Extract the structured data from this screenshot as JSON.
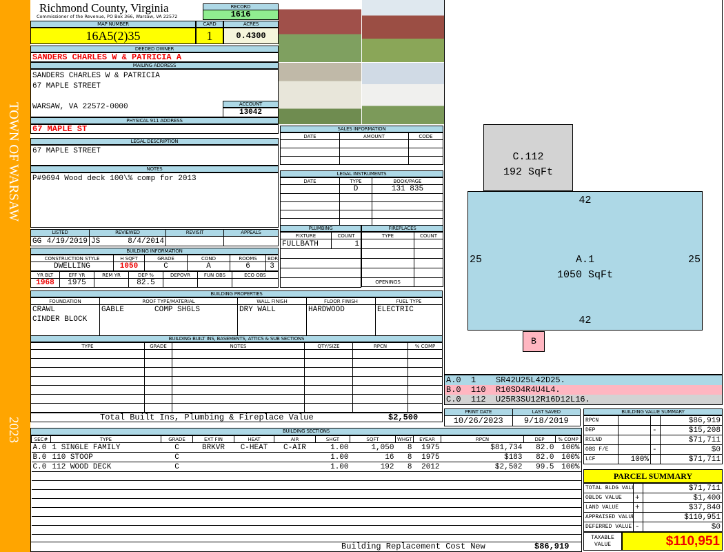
{
  "sidebar": {
    "town": "TOWN OF WARSAW",
    "year": "2023",
    "color": "#ffa500"
  },
  "header": {
    "title": "Richmond County, Virginia",
    "subtitle": "Commissioner of the Revenue, PO Box 366, Warsaw, VA 22572",
    "record_label": "RECORD",
    "record": "1616"
  },
  "parcel": {
    "map_label": "MAP NUMBER",
    "map": "16A5(2)35",
    "card_label": "CARD",
    "card": "1",
    "acres_label": "ACRES",
    "acres": "0.4300"
  },
  "owner": {
    "label": "DEEDED OWNER",
    "name": "SANDERS CHARLES W & PATRICIA A"
  },
  "mailing": {
    "label": "MAILING ADDRESS",
    "line1": "SANDERS CHARLES W & PATRICIA",
    "line2": "67 MAPLE STREET",
    "line3": "WARSAW, VA 22572-0000",
    "account_label": "ACCOUNT",
    "account": "13042"
  },
  "physical": {
    "label": "PHYSICAL 911 ADDRESS",
    "value": "67 MAPLE ST"
  },
  "legal": {
    "label": "LEGAL DESCRIPTION",
    "value": "67 MAPLE STREET"
  },
  "notes": {
    "label": "NOTES",
    "value": "P#9694 Wood deck 100\\% comp for 2013"
  },
  "review": {
    "listed_label": "LISTED",
    "reviewed_label": "REVIEWED",
    "revisit_label": "REVISIT",
    "appeals_label": "APPEALS",
    "listed_by": "GG",
    "listed_date": "4/19/2019",
    "reviewed_by": "JS",
    "reviewed_date": "8/4/2014"
  },
  "building_info": {
    "label": "BUILDING INFORMATION",
    "h1": [
      "CONSTRUCTION STYLE",
      "H SQFT",
      "GRADE",
      "COND",
      "ROOMS",
      "BDRMS"
    ],
    "v1": [
      "DWELLING",
      "1050",
      "C",
      "A",
      "6",
      "3"
    ],
    "h2": [
      "YR BLT",
      "EFF YR",
      "REM YR",
      "DEP %",
      "DEPOVR",
      "FUN OBS",
      "ECO OBS"
    ],
    "v2": [
      "1968",
      "1975",
      "",
      "82.5",
      "",
      "",
      ""
    ]
  },
  "sales": {
    "label": "SALES INFORMATION",
    "cols": [
      "DATE",
      "AMOUNT",
      "CODE"
    ]
  },
  "legal_instruments": {
    "label": "LEGAL INSTRUMENTS",
    "cols": [
      "DATE",
      "TYPE",
      "BOOK/PAGE"
    ],
    "rows": [
      [
        "",
        "D",
        "131 835"
      ]
    ]
  },
  "plumbing": {
    "label": "PLUMBING",
    "cols": [
      "FIXTURE",
      "COUNT"
    ],
    "rows": [
      [
        "FULLBATH",
        "1"
      ]
    ]
  },
  "fireplaces": {
    "label": "FIREPLACES",
    "cols": [
      "TYPE",
      "COUNT"
    ],
    "openings_label": "OPENINGS"
  },
  "properties": {
    "label": "BUILDING PROPERTIES",
    "cols": [
      "FOUNDATION",
      "ROOF TYPE/MATERIAL",
      "WALL FINISH",
      "FLOOR FINISH",
      "FUEL TYPE"
    ],
    "foundation1": "CRAWL",
    "foundation2": "CINDER BLOCK",
    "roof_type": "GABLE",
    "roof_material": "COMP SHGLS",
    "wall": "DRY WALL",
    "floor": "HARDWOOD",
    "fuel": "ELECTRIC"
  },
  "builtins": {
    "label": "BUILDING BUILT INS, BASEMENTS, ATTICS & SUB SECTIONS",
    "cols": [
      "TYPE",
      "GRADE",
      "NOTES",
      "QTY/SIZE",
      "RPCN",
      "% COMP"
    ],
    "total_label": "Total Built Ins, Plumbing & Fireplace Value",
    "total": "$2,500"
  },
  "sections": {
    "label": "BUILDING SECTIONS",
    "cols": [
      "SEC#",
      "TYPE",
      "GRADE",
      "EXT FIN",
      "HEAT",
      "AIR",
      "SHGT",
      "SQFT",
      "WHGT",
      "EYEAR",
      "RPCN",
      "DEP",
      "% COMP"
    ],
    "rows": [
      [
        "A.0",
        "1 SINGLE FAMILY",
        "C",
        "BRKVR",
        "C-HEAT",
        "C-AIR",
        "1.00",
        "1,050",
        "8",
        "1975",
        "$81,734",
        "82.0",
        "100%"
      ],
      [
        "B.0",
        "110 STOOP",
        "C",
        "",
        "",
        "",
        "1.00",
        "16",
        "8",
        "1975",
        "$183",
        "82.0",
        "100%"
      ],
      [
        "C.0",
        "112 WOOD DECK",
        "C",
        "",
        "",
        "",
        "1.00",
        "192",
        "8",
        "2012",
        "$2,502",
        "99.5",
        "100%"
      ]
    ],
    "rcn_label": "Building Replacement Cost New",
    "rcn": "$86,919"
  },
  "sketch": {
    "areas": [
      {
        "label": "C.112",
        "sqft": "192 SqFt",
        "color": "#d3d3d3"
      },
      {
        "label": "A.1",
        "sqft": "1050 SqFt",
        "color": "#add8e6",
        "top": "42",
        "bottom": "42",
        "left": "25",
        "right": "25"
      },
      {
        "label": "B",
        "color": "#ffb6c1"
      }
    ],
    "legend": [
      {
        "sec": "A.0",
        "code": "1",
        "path": "SR42U25L42D25.",
        "color": "#add8e6"
      },
      {
        "sec": "B.0",
        "code": "110",
        "path": "R10SD4R4U4L4.",
        "color": "#ffb6c1"
      },
      {
        "sec": "C.0",
        "code": "112",
        "path": "U25R3SU12R16D12L16.",
        "color": "#d3d3d3"
      }
    ]
  },
  "dates": {
    "print_label": "PRINT DATE",
    "print": "10/26/2023",
    "saved_label": "LAST SAVED",
    "saved": "9/18/2019"
  },
  "value_summary": {
    "label": "BUILDING VALUE SUMMARY",
    "rows": [
      {
        "k": "RPCN",
        "op": "",
        "v": "$86,919"
      },
      {
        "k": "DEP",
        "op": "-",
        "v": "$15,208"
      },
      {
        "k": "RCLND",
        "op": "",
        "v": "$71,711"
      },
      {
        "k": "OBS F/E",
        "op": "-",
        "v": "$0"
      },
      {
        "k": "LCF",
        "pct": "100%",
        "op": "",
        "v": "$71,711"
      }
    ]
  },
  "parcel_summary": {
    "label": "PARCEL SUMMARY",
    "rows": [
      {
        "k": "TOTAL BLDG VALUE",
        "op": "",
        "v": "$71,711"
      },
      {
        "k": "OBLDG VALUE",
        "op": "+",
        "v": "$1,400"
      },
      {
        "k": "LAND VALUE",
        "op": "+",
        "v": "$37,840"
      },
      {
        "k": "APPRAISED VALUE",
        "op": "",
        "v": "$110,951"
      },
      {
        "k": "DEFERRED VALUE",
        "op": "-",
        "v": "$0"
      }
    ],
    "taxable_label": "TAXABLE VALUE",
    "taxable": "$110,951"
  }
}
